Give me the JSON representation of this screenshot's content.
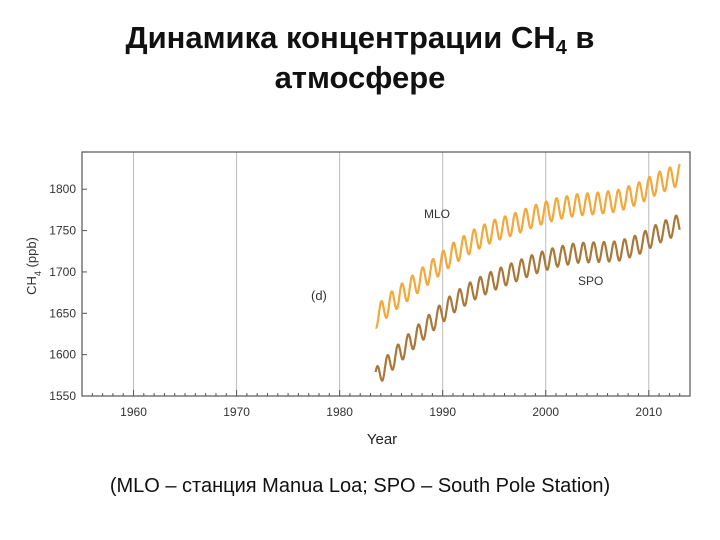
{
  "title": {
    "line1_text": "Динамика концентрации CH",
    "line1_sub": "4",
    "line1_end": " в",
    "line2": "атмосфере"
  },
  "caption": "(MLO – станция Manua Loa; SPO – South Pole Station)",
  "chart_data": {
    "type": "line",
    "panel_label": "(d)",
    "xlabel": "Year",
    "ylabel": "CH4 (ppb)",
    "ylabel_main": "CH",
    "ylabel_sub": "4",
    "ylabel_unit": " (ppb)",
    "xlim": [
      1955,
      2014
    ],
    "ylim": [
      1550,
      1845
    ],
    "xticks": [
      1960,
      1970,
      1980,
      1990,
      2000,
      2010
    ],
    "yticks": [
      1550,
      1600,
      1650,
      1700,
      1750,
      1800
    ],
    "grid": true,
    "colors": {
      "MLO": "#f2a93b",
      "SPO": "#a8793a",
      "grid": "#bbbbbb",
      "axis": "#555555"
    },
    "series": [
      {
        "name": "MLO",
        "label": "MLO",
        "seasonal_amplitude_ppb": 13,
        "x": [
          1983.5,
          1985,
          1987,
          1989,
          1991,
          1993,
          1995,
          1997,
          1999,
          2001,
          2003,
          2005,
          2007,
          2009,
          2011,
          2013
        ],
        "y": [
          1645,
          1663,
          1682,
          1702,
          1722,
          1738,
          1750,
          1758,
          1768,
          1776,
          1781,
          1783,
          1786,
          1795,
          1808,
          1818
        ]
      },
      {
        "name": "SPO",
        "label": "SPO",
        "seasonal_amplitude_ppb": 12,
        "x": [
          1983.5,
          1985,
          1987,
          1989,
          1991,
          1993,
          1995,
          1997,
          1999,
          2001,
          2003,
          2005,
          2007,
          2009,
          2011,
          2013
        ],
        "y": [
          1572,
          1592,
          1617,
          1640,
          1662,
          1678,
          1690,
          1700,
          1710,
          1718,
          1723,
          1724,
          1725,
          1733,
          1747,
          1758
        ]
      }
    ]
  }
}
